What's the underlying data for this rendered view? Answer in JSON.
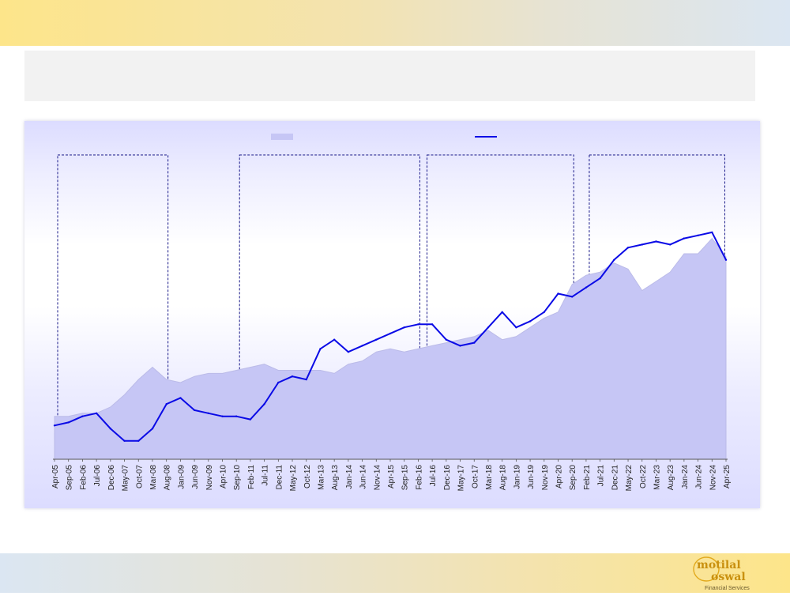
{
  "colors": {
    "area_fill": "#c6c6f5",
    "area_stroke": "#bbbbe8",
    "line": "#0a0ae6",
    "box_stroke": "#1a1a8a"
  },
  "logo": {
    "line1": "motilal",
    "line2": "oswal",
    "sub": "Financial Services"
  },
  "chart_data": {
    "type": "line",
    "legend_placement": "top",
    "grid": false,
    "x_ticks": [
      "Apr-05",
      "Sep-05",
      "Feb-06",
      "Jul-06",
      "Dec-06",
      "May-07",
      "Oct-07",
      "Mar-08",
      "Aug-08",
      "Jan-09",
      "Jun-09",
      "Nov-09",
      "Apr-10",
      "Sep-10",
      "Feb-11",
      "Jul-11",
      "Dec-11",
      "May-12",
      "Oct-12",
      "Mar-13",
      "Aug-13",
      "Jan-14",
      "Jun-14",
      "Nov-14",
      "Apr-15",
      "Sep-15",
      "Feb-16",
      "Jul-16",
      "Dec-16",
      "May-17",
      "Oct-17",
      "Mar-18",
      "Aug-18",
      "Jan-19",
      "Jun-19",
      "Nov-19",
      "Apr-20",
      "Sep-20",
      "Feb-21",
      "Jul-21",
      "Dec-21",
      "May-22",
      "Oct-22",
      "Mar-23",
      "Aug-23",
      "Jan-24",
      "Jun-24",
      "Nov-24",
      "Apr-25"
    ],
    "ylim": [
      0,
      100
    ],
    "series": [
      {
        "style": "area",
        "x": [
          "Apr-05",
          "Sep-05",
          "Feb-06",
          "Jul-06",
          "Dec-06",
          "May-07",
          "Oct-07",
          "Mar-08",
          "Aug-08",
          "Jan-09",
          "Jun-09",
          "Nov-09",
          "Apr-10",
          "Sep-10",
          "Feb-11",
          "Jul-11",
          "Dec-11",
          "May-12",
          "Oct-12",
          "Mar-13",
          "Aug-13",
          "Jan-14",
          "Jun-14",
          "Nov-14",
          "Apr-15",
          "Sep-15",
          "Feb-16",
          "Jul-16",
          "Dec-16",
          "May-17",
          "Oct-17",
          "Mar-18",
          "Aug-18",
          "Jan-19",
          "Jun-19",
          "Nov-19",
          "Apr-20",
          "Sep-20",
          "Feb-21",
          "Jul-21",
          "Dec-21",
          "May-22",
          "Oct-22",
          "Mar-23",
          "Aug-23",
          "Jan-24",
          "Jun-24",
          "Nov-24",
          "Apr-25"
        ],
        "values": [
          14,
          14,
          15,
          15,
          17,
          21,
          26,
          30,
          26,
          25,
          27,
          28,
          28,
          29,
          30,
          31,
          29,
          29,
          29,
          29,
          28,
          31,
          32,
          35,
          36,
          35,
          36,
          37,
          38,
          39,
          40,
          42,
          39,
          40,
          43,
          46,
          48,
          57,
          60,
          61,
          64,
          62,
          55,
          58,
          61,
          67,
          67,
          72,
          66
        ]
      },
      {
        "style": "line",
        "x": [
          "Apr-05",
          "Sep-05",
          "Feb-06",
          "Jul-06",
          "Dec-06",
          "May-07",
          "Oct-07",
          "Mar-08",
          "Aug-08",
          "Jan-09",
          "Jun-09",
          "Nov-09",
          "Apr-10",
          "Sep-10",
          "Feb-11",
          "Jul-11",
          "Dec-11",
          "May-12",
          "Oct-12",
          "Mar-13",
          "Aug-13",
          "Jan-14",
          "Jun-14",
          "Nov-14",
          "Apr-15",
          "Sep-15",
          "Feb-16",
          "Jul-16",
          "Dec-16",
          "May-17",
          "Oct-17",
          "Mar-18",
          "Aug-18",
          "Jan-19",
          "Jun-19",
          "Nov-19",
          "Apr-20",
          "Sep-20",
          "Feb-21",
          "Jul-21",
          "Dec-21",
          "May-22",
          "Oct-22",
          "Mar-23",
          "Aug-23",
          "Jan-24",
          "Jun-24",
          "Nov-24",
          "Apr-25"
        ],
        "values": [
          11,
          12,
          14,
          15,
          10,
          6,
          6,
          10,
          18,
          20,
          16,
          15,
          14,
          14,
          13,
          18,
          25,
          27,
          26,
          36,
          39,
          35,
          37,
          39,
          41,
          43,
          44,
          44,
          39,
          37,
          38,
          43,
          48,
          43,
          45,
          48,
          54,
          53,
          56,
          59,
          65,
          69,
          70,
          71,
          70,
          72,
          73,
          74,
          65
        ]
      }
    ],
    "regions": [
      {
        "from": "Apr-05",
        "to": "Aug-08"
      },
      {
        "from": "Sep-10",
        "to": "Feb-16"
      },
      {
        "from": "Apr-16",
        "to": "Sep-20"
      },
      {
        "from": "Feb-21",
        "to": "Mar-25"
      }
    ]
  }
}
